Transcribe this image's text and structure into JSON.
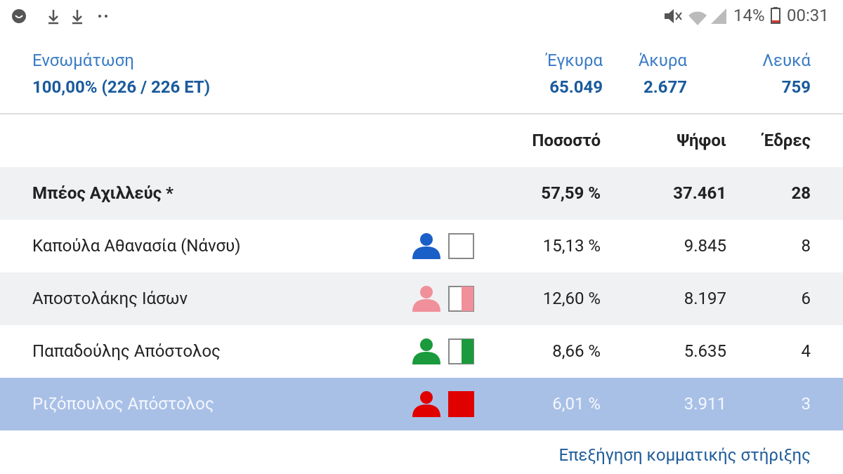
{
  "status_bar": {
    "battery": "14%",
    "time": "00:31"
  },
  "summary": {
    "label": "Ενσωμάτωση",
    "value": "100,00% (226 / 226 ΕΤ)",
    "stats": [
      {
        "label": "Έγκυρα",
        "value": "65.049"
      },
      {
        "label": "Άκυρα",
        "value": "2.677"
      },
      {
        "label": "Λευκά",
        "value": "759"
      }
    ]
  },
  "table": {
    "headers": [
      "Ποσοστό",
      "Ψήφοι",
      "Έδρες"
    ],
    "rows": [
      {
        "name": "Μπέος Αχιλλεύς *",
        "percent": "57,59 %",
        "votes": "37.461",
        "seats": "28",
        "color": null,
        "flag": "none"
      },
      {
        "name": "Καπούλα Αθανασία (Νάνσυ)",
        "percent": "15,13 %",
        "votes": "9.845",
        "seats": "8",
        "color": "#1a5fc8",
        "flag": "empty"
      },
      {
        "name": "Αποστολάκης Ιάσων",
        "percent": "12,60 %",
        "votes": "8.197",
        "seats": "6",
        "color": "#f0909a",
        "flag": "half"
      },
      {
        "name": "Παπαδούλης Απόστολος",
        "percent": "8,66 %",
        "votes": "5.635",
        "seats": "4",
        "color": "#1a9a3c",
        "flag": "half"
      },
      {
        "name": "Ριζόπουλος Απόστολος",
        "percent": "6,01 %",
        "votes": "3.911",
        "seats": "3",
        "color": "#e00000",
        "flag": "full"
      }
    ]
  },
  "footer_link": "Επεξήγηση κομματικής στήριξης"
}
